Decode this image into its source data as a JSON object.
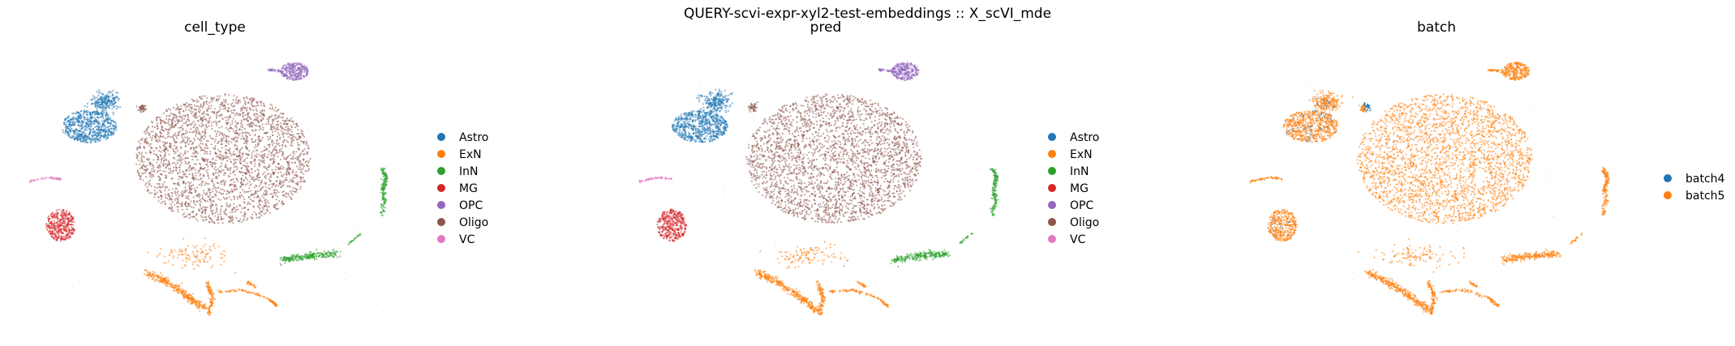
{
  "figure": {
    "suptitle": "QUERY-scvi-expr-xyl2-test-embeddings :: X_scVI_mde"
  },
  "colors": {
    "Astro": "#1f77b4",
    "ExN": "#ff7f0e",
    "InN": "#2ca02c",
    "MG": "#d62728",
    "OPC": "#9467bd",
    "Oligo": "#8c564b",
    "VC": "#e377c2",
    "batch4": "#1f77b4",
    "batch5": "#ff7f0e"
  },
  "chart_data": [
    {
      "type": "scatter",
      "title": "cell_type",
      "color_by": "cell_type",
      "axes": "hidden",
      "grid": false,
      "legend_position": "right",
      "categories": [
        "Astro",
        "ExN",
        "InN",
        "MG",
        "OPC",
        "Oligo",
        "VC"
      ]
    },
    {
      "type": "scatter",
      "title": "pred",
      "color_by": "pred",
      "axes": "hidden",
      "grid": false,
      "legend_position": "right",
      "categories": [
        "Astro",
        "ExN",
        "InN",
        "MG",
        "OPC",
        "Oligo",
        "VC"
      ]
    },
    {
      "type": "scatter",
      "title": "batch",
      "color_by": "batch",
      "axes": "hidden",
      "grid": false,
      "legend_position": "right",
      "categories": [
        "batch4",
        "batch5"
      ]
    }
  ]
}
